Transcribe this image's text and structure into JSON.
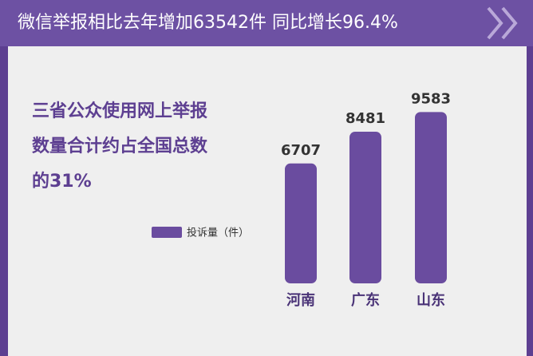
{
  "chart_data": {
    "type": "bar",
    "title": "微信举报相比去年增加63542件 同比增长96.4%",
    "annotation": [
      "三省公众使用网上举报",
      "数量合计约占全国总数",
      "的31%"
    ],
    "categories": [
      "河南",
      "广东",
      "山东"
    ],
    "series": [
      {
        "name": "投诉量（件）",
        "color": "#6a4c9f",
        "values": [
          6707,
          8481,
          9583
        ]
      }
    ],
    "ylim": [
      0,
      10000
    ]
  }
}
